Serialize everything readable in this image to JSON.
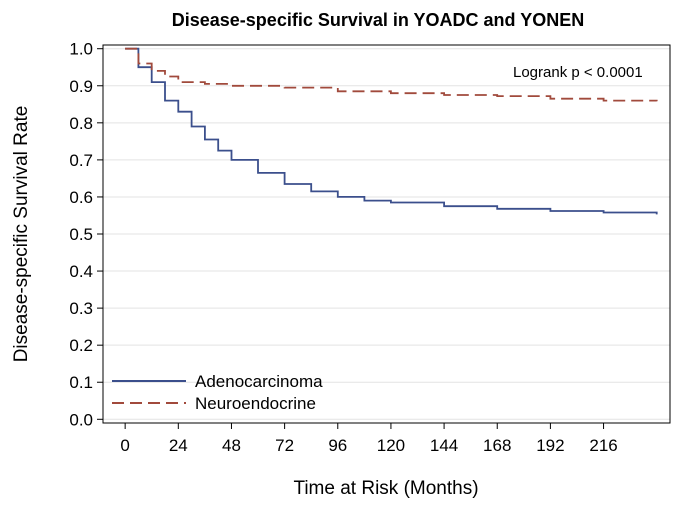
{
  "chart_data": {
    "type": "line",
    "title": "Disease-specific Survival in YOADC and YONEN",
    "xlabel": "Time at Risk (Months)",
    "ylabel": "Disease-specific Survival Rate",
    "xlim": [
      -10,
      246
    ],
    "ylim": [
      -0.01,
      1.01
    ],
    "x_ticks": [
      0,
      24,
      48,
      72,
      96,
      120,
      144,
      168,
      192,
      216
    ],
    "x_tick_labels": [
      "0",
      "24",
      "48",
      "72",
      "96",
      "120",
      "144",
      "168",
      "192",
      "216"
    ],
    "y_ticks": [
      0.0,
      0.1,
      0.2,
      0.3,
      0.4,
      0.5,
      0.6,
      0.7,
      0.8,
      0.9,
      1.0
    ],
    "y_tick_labels": [
      "0.0",
      "0.1",
      "0.2",
      "0.3",
      "0.4",
      "0.5",
      "0.6",
      "0.7",
      "0.8",
      "0.9",
      "1.0"
    ],
    "grid": "horizontal",
    "legend_position": "bottom-left",
    "annotation": "Logrank p < 0.0001",
    "series": [
      {
        "name": "Adenocarcinoma",
        "color": "#3b4f8c",
        "dash": "solid",
        "x": [
          0,
          6,
          12,
          18,
          24,
          30,
          36,
          42,
          48,
          60,
          72,
          84,
          96,
          108,
          120,
          144,
          168,
          192,
          216,
          240
        ],
        "y": [
          1.0,
          0.95,
          0.91,
          0.86,
          0.83,
          0.79,
          0.755,
          0.725,
          0.7,
          0.665,
          0.635,
          0.615,
          0.6,
          0.59,
          0.585,
          0.575,
          0.568,
          0.562,
          0.558,
          0.553
        ]
      },
      {
        "name": "Neuroendocrine",
        "color": "#a14a3c",
        "dash": "dashed",
        "x": [
          0,
          6,
          12,
          18,
          24,
          36,
          48,
          72,
          96,
          120,
          144,
          168,
          192,
          216,
          240
        ],
        "y": [
          1.0,
          0.96,
          0.94,
          0.925,
          0.91,
          0.905,
          0.9,
          0.895,
          0.885,
          0.88,
          0.875,
          0.872,
          0.865,
          0.86,
          0.858
        ]
      }
    ]
  }
}
